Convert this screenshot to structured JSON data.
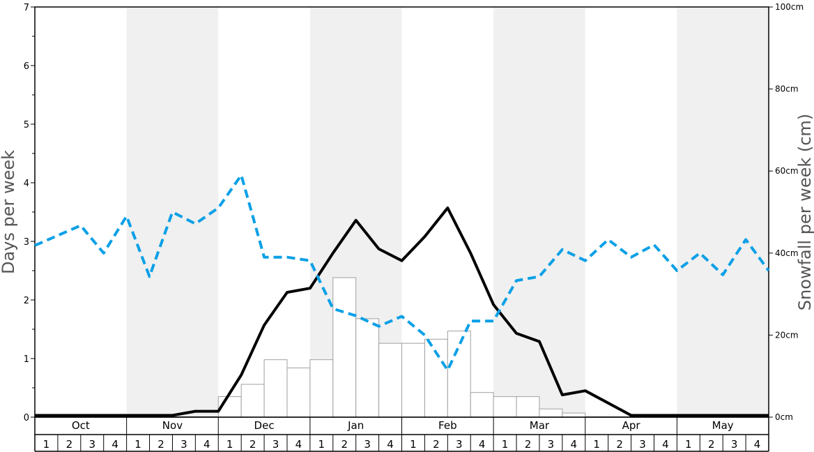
{
  "chart_data": {
    "type": "bar",
    "title": "",
    "ylabel": "Days per week",
    "y2label": "Snowfall per week (cm)",
    "ylim": [
      0,
      7
    ],
    "y2lim": [
      0,
      100
    ],
    "yticks": [
      "0",
      "1",
      "2",
      "3",
      "4",
      "5",
      "6",
      "7"
    ],
    "y2ticks": [
      "0cm",
      "20cm",
      "40cm",
      "60cm",
      "80cm",
      "100cm"
    ],
    "y2tick_values": [
      0,
      20,
      40,
      60,
      80,
      100
    ],
    "months": [
      "Oct",
      "Nov",
      "Dec",
      "Jan",
      "Feb",
      "Mar",
      "Apr",
      "May"
    ],
    "week_labels": [
      "1",
      "2",
      "3",
      "4"
    ],
    "shaded_months": [
      "Nov",
      "Jan",
      "Mar",
      "May"
    ],
    "colors": {
      "bars_fill": "#ffffff",
      "bars_stroke": "#a0a0a0",
      "black_line": "#000000",
      "blue_line": "#0aa0e6",
      "shade": "#f0f0f0"
    },
    "series": [
      {
        "type": "bar",
        "axis": "right",
        "unit": "cm",
        "values": [
          0,
          0,
          0,
          0,
          0,
          0,
          0,
          0,
          5,
          8,
          14,
          12,
          14,
          34,
          24,
          18,
          18,
          19,
          21,
          6,
          5,
          5,
          2,
          1,
          0,
          0,
          0,
          0,
          0,
          0,
          0,
          0
        ]
      },
      {
        "type": "line",
        "axis": "left",
        "style": "solid",
        "values": [
          0.03,
          0.03,
          0.03,
          0.03,
          0.03,
          0.03,
          0.03,
          0.1,
          0.1,
          0.72,
          1.57,
          2.13,
          2.2,
          2.8,
          3.36,
          2.87,
          2.67,
          3.08,
          3.57,
          2.8,
          1.92,
          1.43,
          1.29,
          0.38,
          0.45,
          0.24,
          0.03,
          0.03,
          0.03,
          0.03,
          0.03,
          0.03,
          0.03
        ]
      },
      {
        "type": "line",
        "axis": "left",
        "style": "dashed",
        "values": [
          2.93,
          3.1,
          3.27,
          2.8,
          3.43,
          2.4,
          3.5,
          3.3,
          3.57,
          4.13,
          2.73,
          2.73,
          2.67,
          1.85,
          1.73,
          1.55,
          1.72,
          1.4,
          0.8,
          1.64,
          1.64,
          2.33,
          2.4,
          2.86,
          2.67,
          3.03,
          2.73,
          2.94,
          2.5,
          2.8,
          2.43,
          3.03,
          2.5
        ]
      }
    ]
  }
}
